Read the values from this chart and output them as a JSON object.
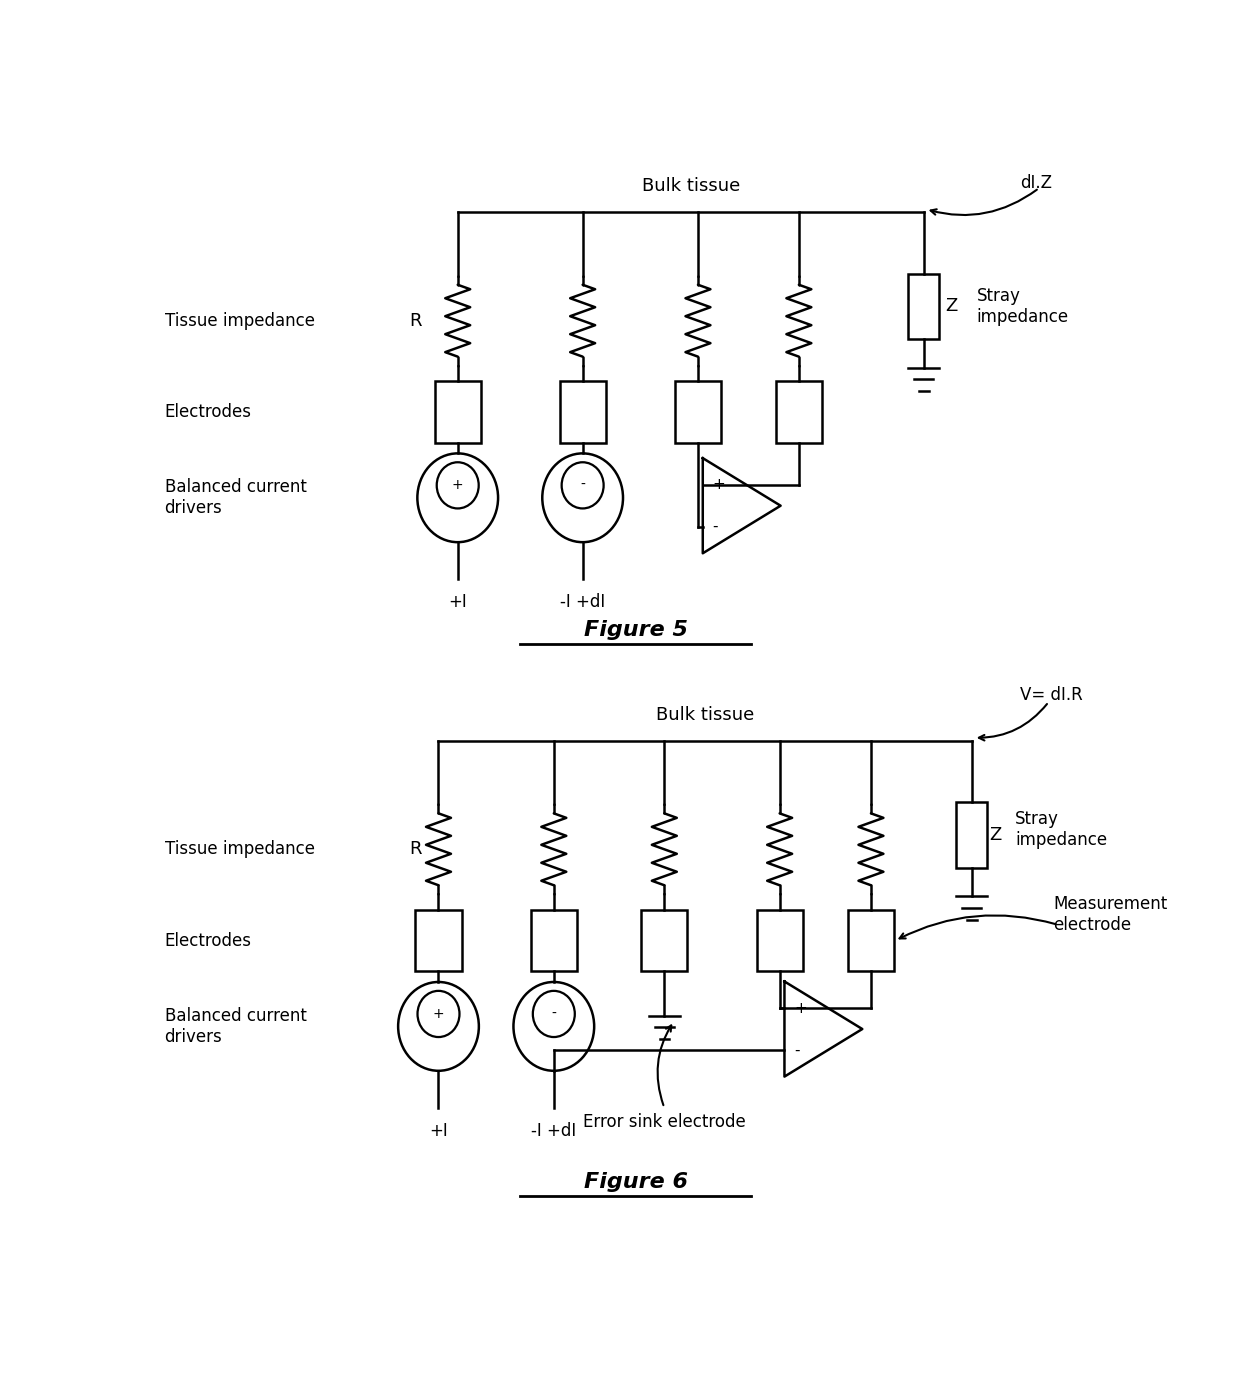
{
  "fig_width": 12.4,
  "fig_height": 13.73,
  "bg_color": "#ffffff",
  "line_color": "#000000",
  "line_width": 1.8,
  "fig5": {
    "title": "Figure 5",
    "bulk_tissue_label": "Bulk tissue",
    "tissue_impedance_label": "Tissue impedance",
    "electrodes_label": "Electrodes",
    "drivers_label": "Balanced current\ndrivers",
    "R_label": "R",
    "stray_label": "Stray\nimpedance",
    "Z_label": "Z",
    "dIZ_label": "dI.Z",
    "plus_label": "+I",
    "minus_label": "-I +dI"
  },
  "fig6": {
    "title": "Figure 6",
    "bulk_tissue_label": "Bulk tissue",
    "tissue_impedance_label": "Tissue impedance",
    "electrodes_label": "Electrodes",
    "drivers_label": "Balanced current\ndrivers",
    "R_label": "R",
    "stray_label": "Stray\nimpedance",
    "Z_label": "Z",
    "V_label": "V= dI.R",
    "meas_label": "Measurement\nelectrode",
    "error_label": "Error sink electrode",
    "plus_label": "+I",
    "minus_label": "-I +dI"
  }
}
